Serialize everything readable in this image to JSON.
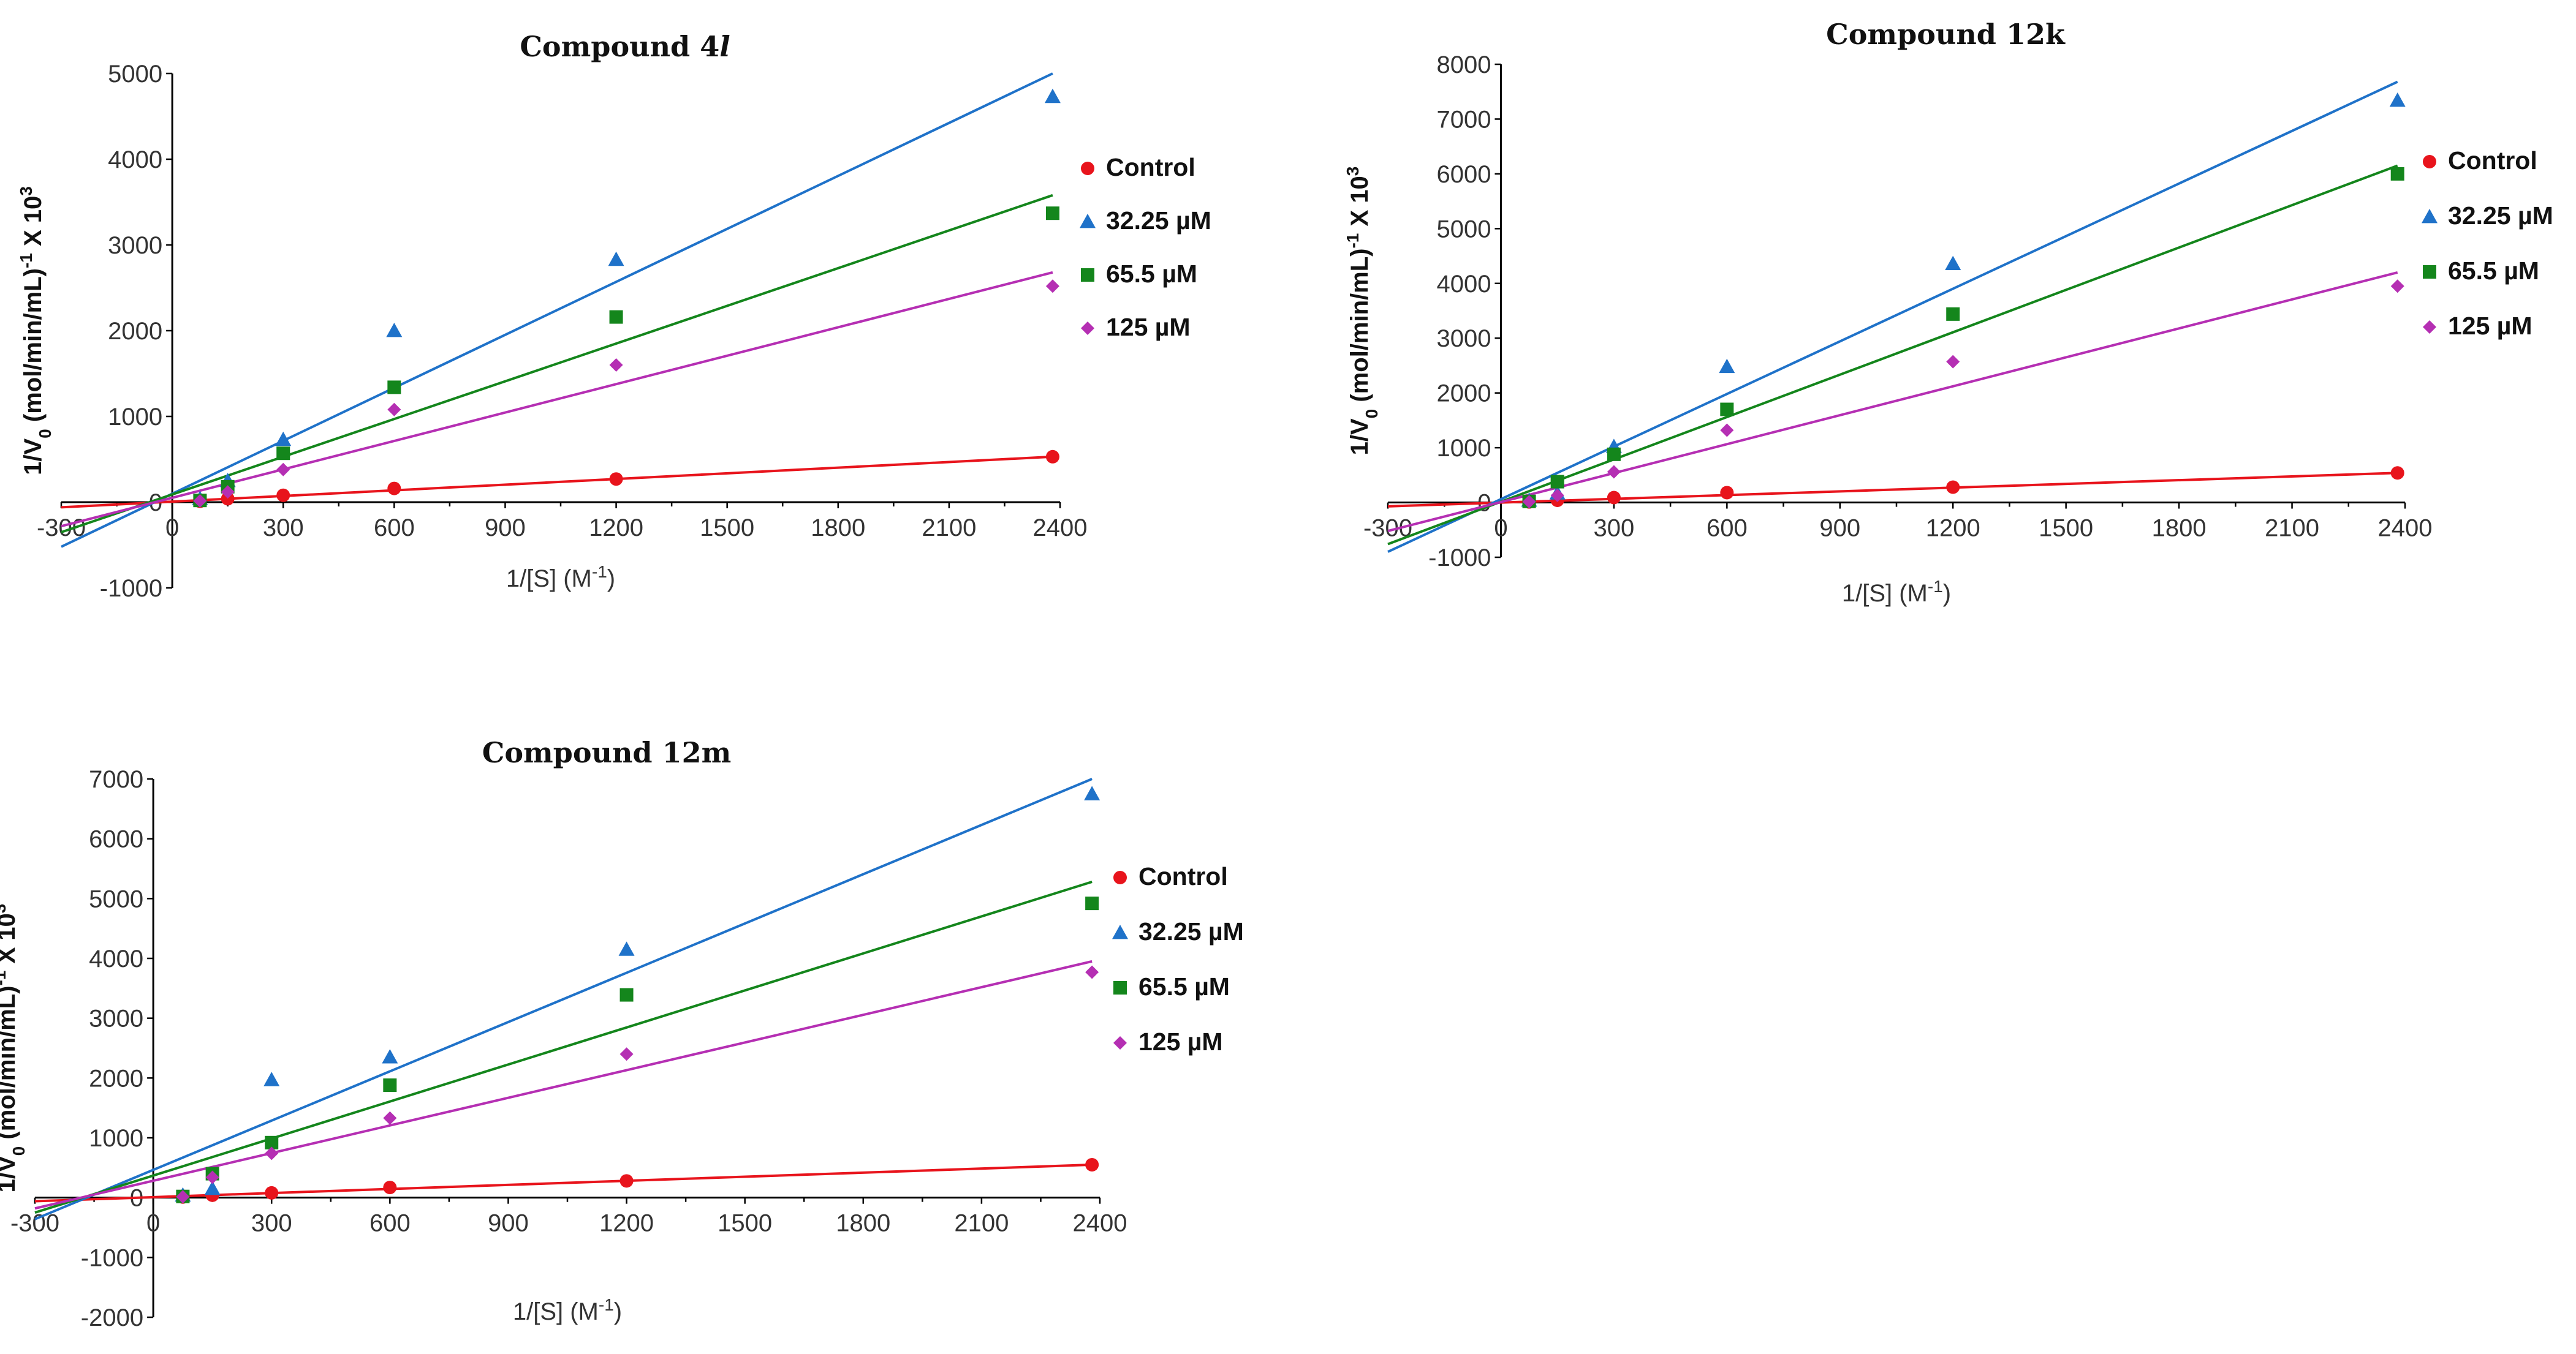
{
  "colors": {
    "control": "#e8141c",
    "c32": "#1f72c9",
    "c65": "#14861c",
    "c125": "#b52fb3"
  },
  "chart_data": [
    {
      "type": "scatter",
      "title_main": "Compound 4",
      "title_suffix": "l",
      "xlabel": "1/[S] (M",
      "xlabel_sup": "-1",
      "xlabel_end": ")",
      "ylabel": "1/V",
      "ylabel_sub": "0",
      "ylabel_mid": " (mol/min/mL)",
      "ylabel_sup": "-1",
      "ylabel_end": " X 10",
      "ylabel_sup2": "3",
      "xlim": [
        -300,
        2400
      ],
      "ylim": [
        -1000,
        5000
      ],
      "xticks": [
        -300,
        0,
        300,
        600,
        900,
        1200,
        1500,
        1800,
        2100,
        2400
      ],
      "yticks": [
        -1000,
        0,
        1000,
        2000,
        3000,
        4000,
        5000
      ],
      "legend": "right",
      "series": [
        {
          "name": "Control",
          "marker": "circle",
          "color": "control",
          "x": [
            75,
            150,
            300,
            600,
            1200,
            2380
          ],
          "y": [
            10,
            40,
            80,
            160,
            270,
            530
          ],
          "fit": [
            [
              -300,
              -60
            ],
            [
              2380,
              530
            ]
          ]
        },
        {
          "name": "32.25 µM",
          "marker": "triangle",
          "color": "c32",
          "x": [
            75,
            150,
            300,
            600,
            1200,
            2380
          ],
          "y": [
            40,
            250,
            730,
            2000,
            2830,
            4730
          ],
          "fit": [
            [
              -300,
              -520
            ],
            [
              2380,
              5000
            ]
          ]
        },
        {
          "name": "65.5 µM",
          "marker": "square",
          "color": "c65",
          "x": [
            75,
            150,
            300,
            600,
            1200,
            2380
          ],
          "y": [
            20,
            180,
            570,
            1340,
            2160,
            3370
          ],
          "fit": [
            [
              -300,
              -350
            ],
            [
              2380,
              3580
            ]
          ]
        },
        {
          "name": "125 µM",
          "marker": "diamond",
          "color": "c125",
          "x": [
            75,
            150,
            300,
            600,
            1200,
            2380
          ],
          "y": [
            15,
            120,
            380,
            1080,
            1600,
            2520
          ],
          "fit": [
            [
              -300,
              -280
            ],
            [
              2380,
              2680
            ]
          ]
        }
      ]
    },
    {
      "type": "scatter",
      "title_main": "Compound 12k",
      "title_suffix": "",
      "xlabel": "1/[S] (M",
      "xlabel_sup": "-1",
      "xlabel_end": ")",
      "ylabel": "1/V",
      "ylabel_sub": "0",
      "ylabel_mid": " (mol/min/mL)",
      "ylabel_sup": "-1",
      "ylabel_end": " X 10",
      "ylabel_sup2": "3",
      "xlim": [
        -300,
        2400
      ],
      "ylim": [
        -1000,
        8000
      ],
      "xticks": [
        -300,
        0,
        300,
        600,
        900,
        1200,
        1500,
        1800,
        2100,
        2400
      ],
      "yticks": [
        -1000,
        0,
        1000,
        2000,
        3000,
        4000,
        5000,
        6000,
        7000,
        8000
      ],
      "legend": "right",
      "series": [
        {
          "name": "Control",
          "marker": "circle",
          "color": "control",
          "x": [
            75,
            150,
            300,
            600,
            1200,
            2380
          ],
          "y": [
            10,
            40,
            90,
            180,
            280,
            540
          ],
          "fit": [
            [
              -300,
              -70
            ],
            [
              2380,
              540
            ]
          ]
        },
        {
          "name": "32.25 µM",
          "marker": "triangle",
          "color": "c32",
          "x": [
            75,
            150,
            300,
            600,
            1200,
            2380
          ],
          "y": [
            40,
            170,
            1020,
            2480,
            4360,
            7340
          ],
          "fit": [
            [
              -300,
              -900
            ],
            [
              2380,
              7680
            ]
          ]
        },
        {
          "name": "65.5 µM",
          "marker": "square",
          "color": "c65",
          "x": [
            75,
            150,
            300,
            600,
            1200,
            2380
          ],
          "y": [
            20,
            380,
            880,
            1700,
            3440,
            6000
          ],
          "fit": [
            [
              -300,
              -760
            ],
            [
              2380,
              6150
            ]
          ]
        },
        {
          "name": "125 µM",
          "marker": "diamond",
          "color": "c125",
          "x": [
            75,
            150,
            300,
            600,
            1200,
            2380
          ],
          "y": [
            15,
            130,
            560,
            1320,
            2570,
            3950
          ],
          "fit": [
            [
              -300,
              -520
            ],
            [
              2380,
              4200
            ]
          ]
        }
      ]
    },
    {
      "type": "scatter",
      "title_main": "Compound 12m",
      "title_suffix": "",
      "xlabel": "1/[S] (M",
      "xlabel_sup": "-1",
      "xlabel_end": ")",
      "ylabel": "1/V",
      "ylabel_sub": "0",
      "ylabel_mid": " (mol/min/mL)",
      "ylabel_sup": "-1",
      "ylabel_end": " X 10",
      "ylabel_sup2": "3",
      "xlim": [
        -300,
        2400
      ],
      "ylim": [
        -2000,
        7000
      ],
      "xticks": [
        -300,
        0,
        300,
        600,
        900,
        1200,
        1500,
        1800,
        2100,
        2400
      ],
      "yticks": [
        -2000,
        -1000,
        0,
        1000,
        2000,
        3000,
        4000,
        5000,
        6000,
        7000
      ],
      "legend": "right",
      "series": [
        {
          "name": "Control",
          "marker": "circle",
          "color": "control",
          "x": [
            75,
            150,
            300,
            600,
            1200,
            2380
          ],
          "y": [
            10,
            40,
            80,
            170,
            280,
            550
          ],
          "fit": [
            [
              -300,
              -60
            ],
            [
              2380,
              550
            ]
          ]
        },
        {
          "name": "32.25 µM",
          "marker": "triangle",
          "color": "c32",
          "x": [
            75,
            150,
            300,
            600,
            1200,
            2380
          ],
          "y": [
            40,
            150,
            1970,
            2350,
            4150,
            6750
          ],
          "fit": [
            [
              -300,
              -360
            ],
            [
              2380,
              7000
            ]
          ]
        },
        {
          "name": "65.5 µM",
          "marker": "square",
          "color": "c65",
          "x": [
            75,
            150,
            300,
            600,
            1200,
            2380
          ],
          "y": [
            20,
            400,
            920,
            1880,
            3390,
            4920
          ],
          "fit": [
            [
              -300,
              -250
            ],
            [
              2380,
              5280
            ]
          ]
        },
        {
          "name": "125 µM",
          "marker": "diamond",
          "color": "c125",
          "x": [
            75,
            150,
            300,
            600,
            1200,
            2380
          ],
          "y": [
            15,
            340,
            740,
            1330,
            2400,
            3770
          ],
          "fit": [
            [
              -300,
              -180
            ],
            [
              2380,
              3950
            ]
          ]
        }
      ]
    }
  ]
}
